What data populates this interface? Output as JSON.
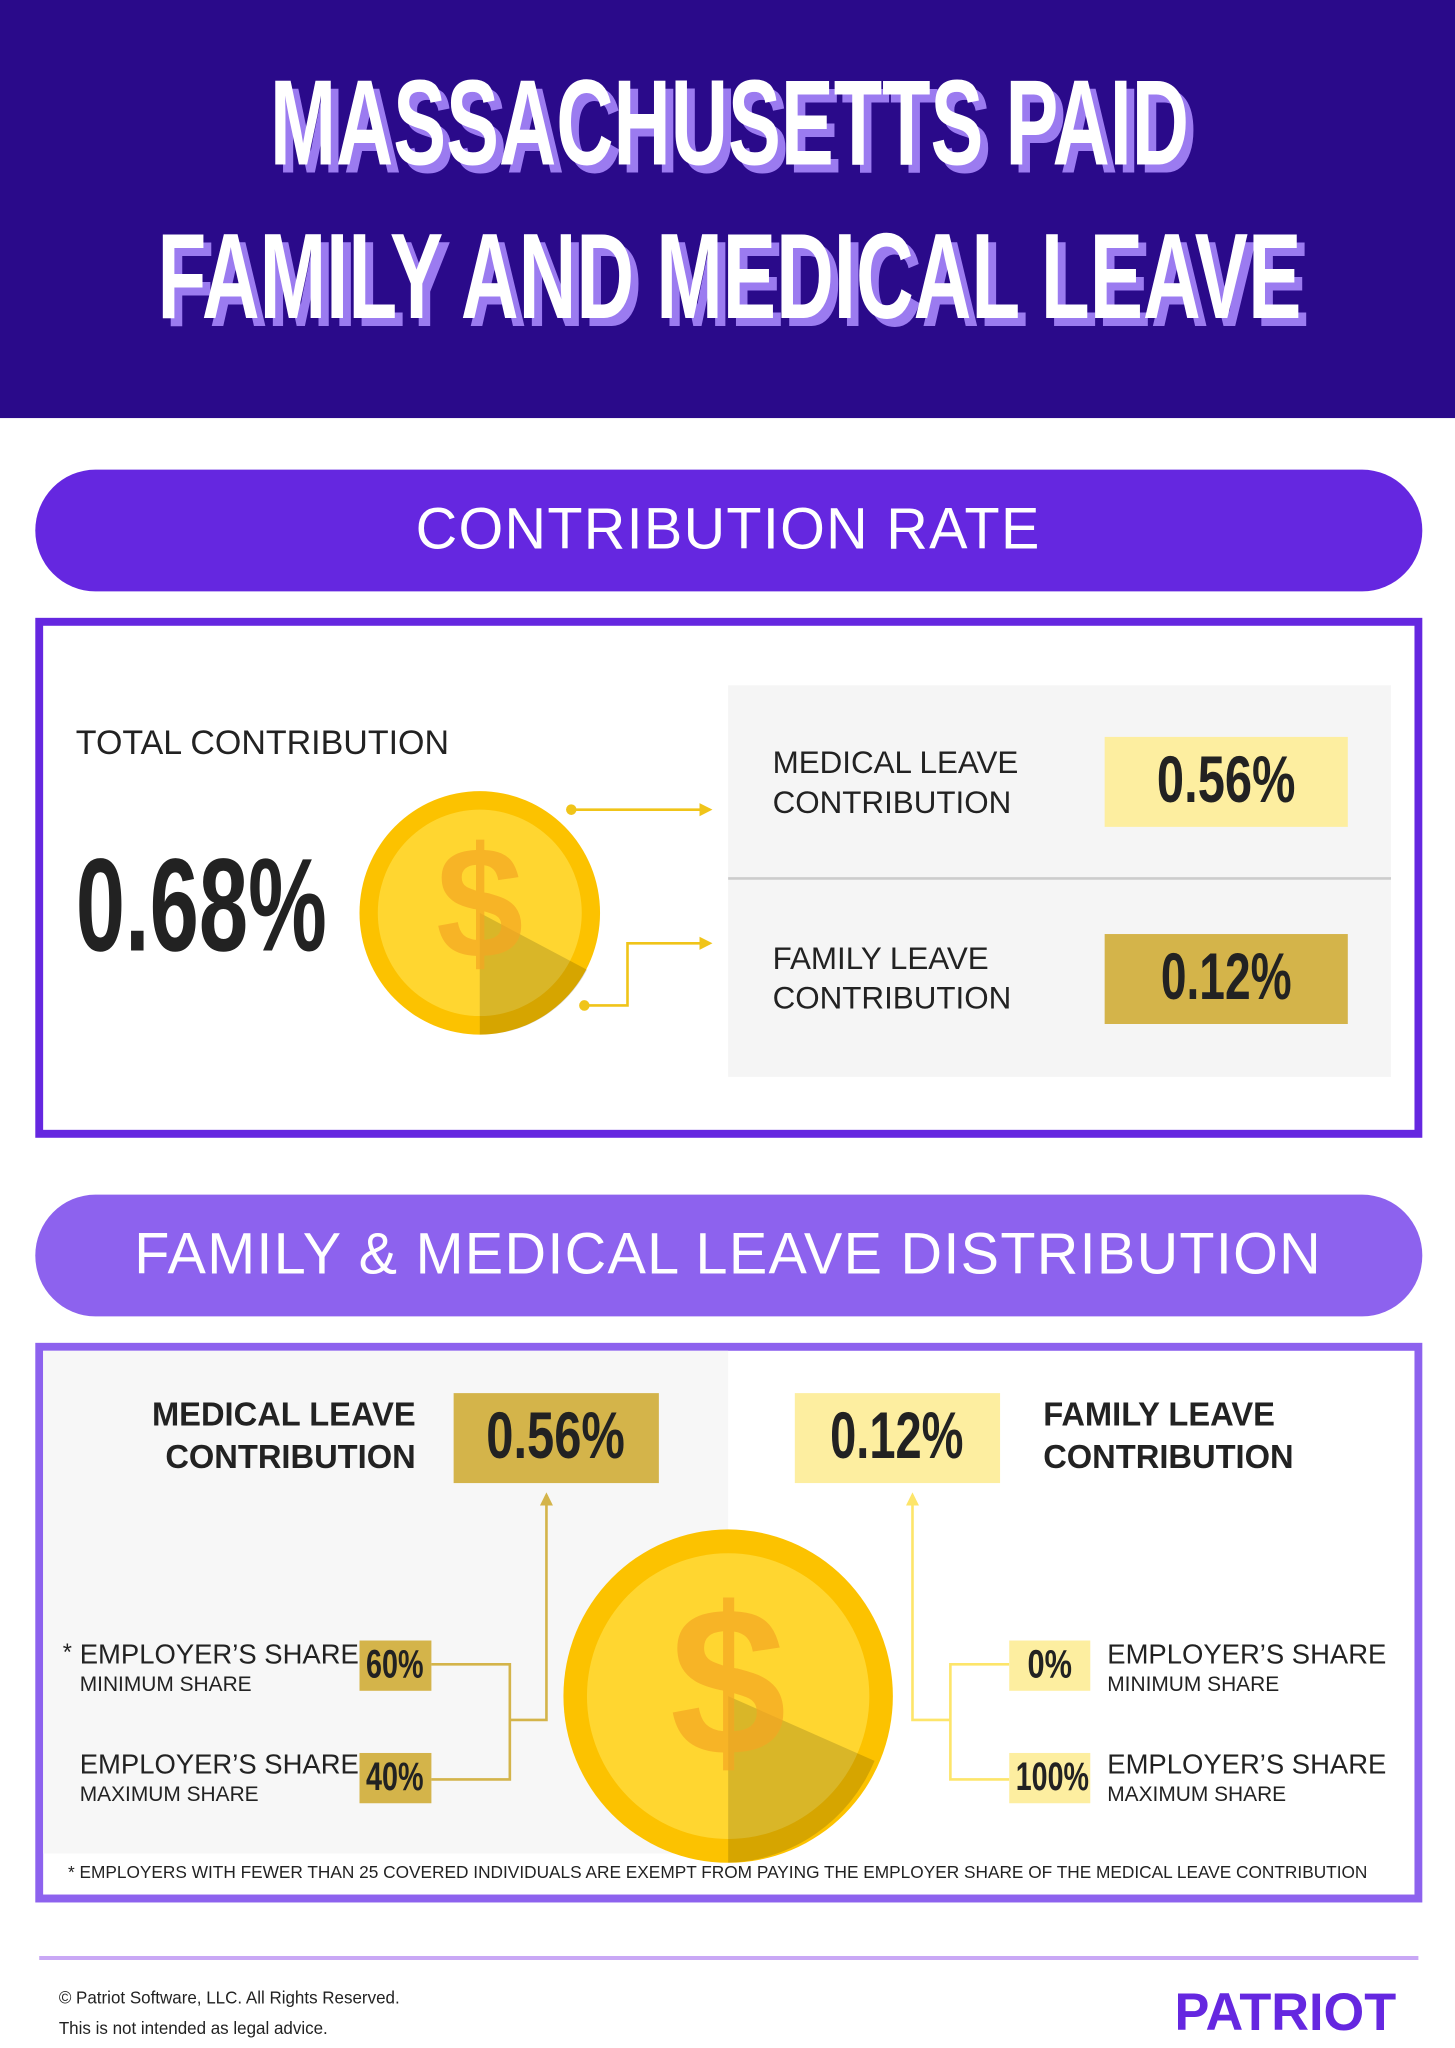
{
  "header": {
    "title_lines": [
      "MASSACHUSETTS PAID",
      "FAMILY AND MEDICAL LEAVE"
    ]
  },
  "coin_symbol": "$",
  "contribution_rate": {
    "heading": "CONTRIBUTION RATE",
    "total_label": "TOTAL CONTRIBUTION",
    "total_value": "0.68%",
    "medical": {
      "label_lines": [
        "MEDICAL LEAVE",
        "CONTRIBUTION"
      ],
      "value": "0.56%"
    },
    "family": {
      "label_lines": [
        "FAMILY LEAVE",
        "CONTRIBUTION"
      ],
      "value": "0.12%"
    }
  },
  "distribution": {
    "heading": "FAMILY & MEDICAL LEAVE DISTRIBUTION",
    "medical": {
      "label_lines": [
        "MEDICAL LEAVE",
        "CONTRIBUTION"
      ],
      "value": "0.56%",
      "shares": [
        {
          "marker": "*",
          "label": "EMPLOYER’S SHARE",
          "sublabel": "MINIMUM SHARE",
          "value": "60%"
        },
        {
          "label": "EMPLOYER’S SHARE",
          "sublabel": "MAXIMUM SHARE",
          "value": "40%"
        }
      ]
    },
    "family": {
      "label_lines": [
        "FAMILY LEAVE",
        "CONTRIBUTION"
      ],
      "value": "0.12%",
      "shares": [
        {
          "label": "EMPLOYER’S SHARE",
          "sublabel": "MINIMUM SHARE",
          "value": "0%"
        },
        {
          "label": "EMPLOYER’S SHARE",
          "sublabel": "MAXIMUM SHARE",
          "value": "100%"
        }
      ]
    },
    "footnote": "*  EMPLOYERS WITH FEWER THAN 25 COVERED INDIVIDUALS ARE EXEMPT FROM PAYING THE EMPLOYER SHARE OF THE MEDICAL LEAVE CONTRIBUTION"
  },
  "footer": {
    "copyright": "© Patriot Software, LLC. All Rights Reserved.",
    "disclaimer": "This is not intended as legal advice.",
    "logo": "PATRIOT"
  }
}
